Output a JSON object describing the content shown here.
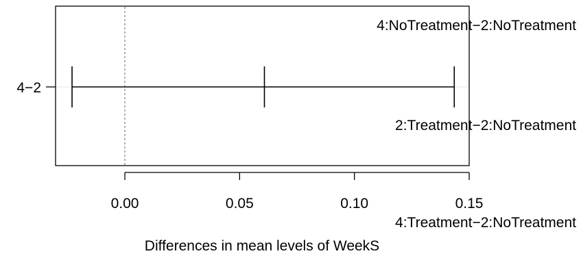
{
  "chart_data": {
    "type": "interval",
    "title": "",
    "xlabel": "Differences in mean levels of WeekS",
    "ylabel": "",
    "xlim": [
      -0.029,
      0.15
    ],
    "xticks": [
      {
        "value": 0.0,
        "label": "0.00"
      },
      {
        "value": 0.05,
        "label": "0.05"
      },
      {
        "value": 0.1,
        "label": "0.10"
      },
      {
        "value": 0.15,
        "label": "0.15"
      }
    ],
    "reference_line": {
      "value": 0,
      "style": "dotted",
      "color": "#7f7f7f"
    },
    "intervals": [
      {
        "label": "4−2",
        "lower": -0.023,
        "estimate": 0.0608,
        "upper": 0.1435
      }
    ],
    "annotations": [
      "4:NoTreatment−2:NoTreatment",
      "2:Treatment−2:NoTreatment",
      "4:Treatment−2:NoTreatment"
    ],
    "grid": false
  }
}
